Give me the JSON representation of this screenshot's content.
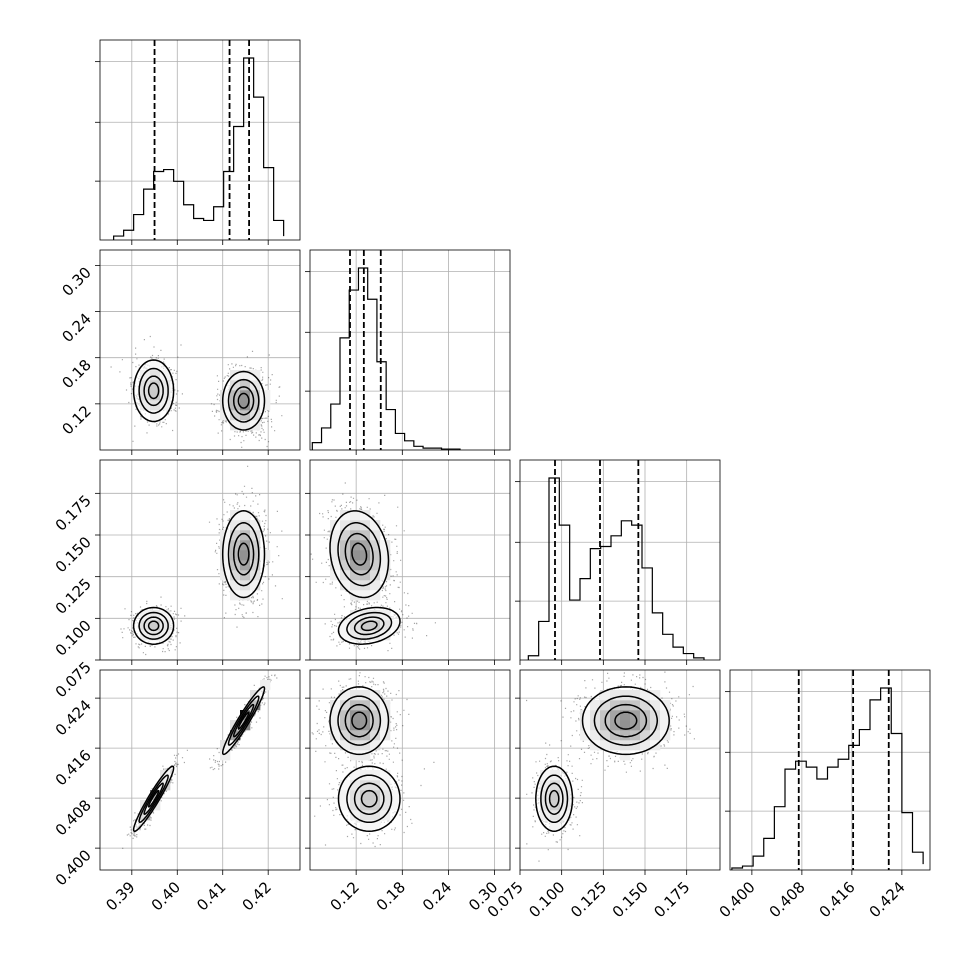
{
  "chart_data": {
    "type": "corner",
    "grid": true,
    "parameters": [
      {
        "range": [
          0.383,
          0.427
        ],
        "ticks": [
          0.39,
          0.4,
          0.41,
          0.42
        ],
        "tick_labels": [
          "0.39",
          "0.40",
          "0.41",
          "0.42"
        ]
      },
      {
        "range": [
          0.06,
          0.32
        ],
        "ticks": [
          0.12,
          0.18,
          0.24,
          0.3
        ],
        "tick_labels": [
          "0.12",
          "0.18",
          "0.24",
          "0.30"
        ]
      },
      {
        "range": [
          0.075,
          0.195
        ],
        "ticks": [
          0.075,
          0.1,
          0.125,
          0.15,
          0.175
        ],
        "tick_labels": [
          "0.075",
          "0.100",
          "0.125",
          "0.150",
          "0.175"
        ]
      },
      {
        "range": [
          0.3965,
          0.4285
        ],
        "ticks": [
          0.4,
          0.408,
          0.416,
          0.424
        ],
        "tick_labels": [
          "0.400",
          "0.408",
          "0.416",
          "0.424"
        ]
      }
    ],
    "histograms": [
      {
        "bins": [
          0.386,
          0.3882,
          0.3904,
          0.3926,
          0.3948,
          0.397,
          0.3992,
          0.4014,
          0.4036,
          0.4058,
          0.408,
          0.4102,
          0.4124,
          0.4146,
          0.4168,
          0.419,
          0.4212,
          0.4234
        ],
        "counts": [
          0.02,
          0.05,
          0.13,
          0.26,
          0.35,
          0.36,
          0.3,
          0.18,
          0.11,
          0.1,
          0.17,
          0.35,
          0.58,
          0.93,
          0.73,
          0.37,
          0.1,
          0.02
        ],
        "quantiles": [
          0.395,
          0.4115,
          0.4158
        ]
      },
      {
        "bins": [
          0.063,
          0.075,
          0.087,
          0.099,
          0.111,
          0.123,
          0.135,
          0.147,
          0.159,
          0.171,
          0.183,
          0.195,
          0.207,
          0.219,
          0.231,
          0.243,
          0.255
        ],
        "counts": [
          0.04,
          0.12,
          0.25,
          0.61,
          0.87,
          0.99,
          0.82,
          0.48,
          0.22,
          0.09,
          0.05,
          0.02,
          0.01,
          0.01,
          0.005,
          0.005
        ],
        "quantiles": [
          0.112,
          0.13,
          0.152
        ]
      },
      {
        "bins": [
          0.08,
          0.0862,
          0.0924,
          0.0986,
          0.1048,
          0.111,
          0.1172,
          0.1234,
          0.1296,
          0.1358,
          0.142,
          0.1482,
          0.1544,
          0.1606,
          0.1668,
          0.173,
          0.1792,
          0.1854
        ],
        "counts": [
          0.02,
          0.18,
          0.85,
          0.63,
          0.28,
          0.38,
          0.52,
          0.53,
          0.58,
          0.65,
          0.63,
          0.43,
          0.22,
          0.12,
          0.06,
          0.03,
          0.01
        ],
        "quantiles": [
          0.096,
          0.123,
          0.146
        ]
      },
      {
        "bins": [
          0.3968,
          0.3985,
          0.4002,
          0.4019,
          0.4036,
          0.4053,
          0.407,
          0.4087,
          0.4104,
          0.4121,
          0.4138,
          0.4155,
          0.4172,
          0.4189,
          0.4206,
          0.4223,
          0.424,
          0.4257,
          0.4274
        ],
        "counts": [
          0.01,
          0.02,
          0.07,
          0.16,
          0.32,
          0.51,
          0.55,
          0.52,
          0.46,
          0.52,
          0.56,
          0.63,
          0.71,
          0.86,
          0.92,
          0.69,
          0.29,
          0.09,
          0.03
        ],
        "quantiles": [
          0.4075,
          0.4162,
          0.4219
        ]
      }
    ],
    "clusters": [
      {
        "center": [
          0.3948,
          0.137,
          0.0955,
          0.4079
        ],
        "sigma": [
          0.0022,
          0.02,
          0.0055,
          0.0026
        ],
        "corr": [
          [
            1,
            0,
            0,
            0.95
          ],
          [
            0,
            1,
            0.25,
            0
          ],
          [
            0,
            0.25,
            1,
            0
          ],
          [
            0.95,
            0,
            0,
            1
          ]
        ],
        "weight": 0.36
      },
      {
        "center": [
          0.4146,
          0.124,
          0.1385,
          0.4204
        ],
        "sigma": [
          0.0023,
          0.019,
          0.013,
          0.0027
        ],
        "corr": [
          [
            1,
            0,
            0,
            0.95
          ],
          [
            0,
            1,
            -0.15,
            0
          ],
          [
            0,
            -0.15,
            1,
            0
          ],
          [
            0.95,
            0,
            0,
            1
          ]
        ],
        "weight": 0.64
      }
    ]
  }
}
